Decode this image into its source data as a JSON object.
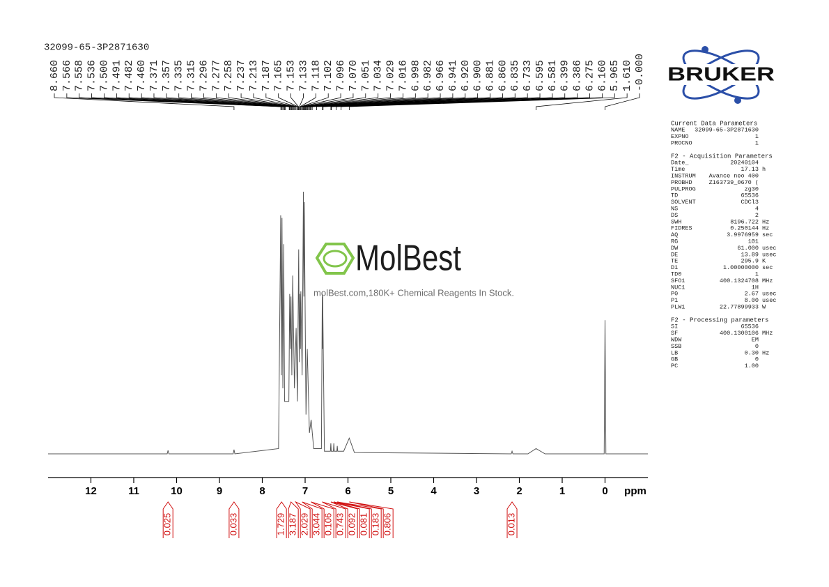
{
  "chart_data": {
    "type": "spectrum",
    "title": "32099-65-3P2871630",
    "x_label": "ppm",
    "xlim": [
      13,
      -1
    ],
    "xticks": [
      12,
      11,
      10,
      9,
      8,
      7,
      6,
      5,
      4,
      3,
      2,
      1,
      0
    ],
    "ylim": [
      0,
      100
    ],
    "color": "#555555",
    "x": [
      13,
      10.22,
      10.2,
      10.18,
      8.68,
      8.66,
      8.64,
      7.62,
      7.57,
      7.555,
      7.54,
      7.52,
      7.5,
      7.48,
      7.38,
      7.36,
      7.345,
      7.33,
      7.31,
      7.29,
      7.25,
      7.21,
      7.18,
      7.15,
      7.135,
      7.12,
      7.11,
      7.1,
      7.07,
      7.04,
      7.03,
      7.02,
      6.98,
      6.95,
      6.9,
      6.86,
      6.8,
      6.62,
      6.6,
      6.595,
      6.59,
      6.55,
      6.41,
      6.4,
      6.39,
      6.34,
      6.33,
      6.32,
      6.26,
      6.25,
      6.24,
      6.1,
      5.97,
      5.85,
      2.19,
      2.17,
      2.15,
      1.8,
      1.61,
      1.4,
      0.02,
      0,
      -0.02,
      -1
    ],
    "values": [
      0,
      0,
      1.3,
      0,
      0,
      1.6,
      0,
      2,
      91,
      30,
      90,
      25,
      80,
      20,
      20,
      61,
      40,
      60,
      30,
      68,
      25,
      48,
      20,
      78,
      35,
      61,
      40,
      62,
      30,
      100,
      60,
      96,
      15,
      40,
      8,
      13,
      2,
      2,
      61,
      40,
      60,
      1,
      1,
      4,
      1,
      1,
      4,
      1,
      1,
      3,
      1,
      1,
      6,
      0.5,
      0,
      1,
      0,
      0,
      2,
      0,
      0,
      51,
      0,
      0
    ],
    "peaks": [
      {
        "value": 8.66,
        "label": "8.660"
      },
      {
        "value": 7.566,
        "label": "7.566"
      },
      {
        "value": 7.558,
        "label": "7.558"
      },
      {
        "value": 7.536,
        "label": "7.536"
      },
      {
        "value": 7.5,
        "label": "7.500"
      },
      {
        "value": 7.491,
        "label": "7.491"
      },
      {
        "value": 7.482,
        "label": "7.482"
      },
      {
        "value": 7.46,
        "label": "7.460"
      },
      {
        "value": 7.371,
        "label": "7.371"
      },
      {
        "value": 7.357,
        "label": "7.357"
      },
      {
        "value": 7.335,
        "label": "7.335"
      },
      {
        "value": 7.315,
        "label": "7.315"
      },
      {
        "value": 7.296,
        "label": "7.296"
      },
      {
        "value": 7.277,
        "label": "7.277"
      },
      {
        "value": 7.258,
        "label": "7.258"
      },
      {
        "value": 7.237,
        "label": "7.237"
      },
      {
        "value": 7.213,
        "label": "7.213"
      },
      {
        "value": 7.187,
        "label": "7.187"
      },
      {
        "value": 7.165,
        "label": "7.165"
      },
      {
        "value": 7.153,
        "label": "7.153"
      },
      {
        "value": 7.133,
        "label": "7.133"
      },
      {
        "value": 7.118,
        "label": "7.118"
      },
      {
        "value": 7.102,
        "label": "7.102"
      },
      {
        "value": 7.096,
        "label": "7.096"
      },
      {
        "value": 7.07,
        "label": "7.070"
      },
      {
        "value": 7.051,
        "label": "7.051"
      },
      {
        "value": 7.034,
        "label": "7.034"
      },
      {
        "value": 7.029,
        "label": "7.029"
      },
      {
        "value": 7.016,
        "label": "7.016"
      },
      {
        "value": 6.998,
        "label": "6.998"
      },
      {
        "value": 6.982,
        "label": "6.982"
      },
      {
        "value": 6.966,
        "label": "6.966"
      },
      {
        "value": 6.941,
        "label": "6.941"
      },
      {
        "value": 6.92,
        "label": "6.920"
      },
      {
        "value": 6.9,
        "label": "6.900"
      },
      {
        "value": 6.881,
        "label": "6.881"
      },
      {
        "value": 6.86,
        "label": "6.860"
      },
      {
        "value": 6.835,
        "label": "6.835"
      },
      {
        "value": 6.733,
        "label": "6.733"
      },
      {
        "value": 6.595,
        "label": "6.595"
      },
      {
        "value": 6.581,
        "label": "6.581"
      },
      {
        "value": 6.399,
        "label": "6.399"
      },
      {
        "value": 6.386,
        "label": "6.386"
      },
      {
        "value": 6.275,
        "label": "6.275"
      },
      {
        "value": 6.16,
        "label": "6.160"
      },
      {
        "value": 5.965,
        "label": "5.965"
      },
      {
        "value": 1.61,
        "label": "1.610"
      },
      {
        "value": 0,
        "label": "-0.000"
      }
    ],
    "integrals": {
      "x": [
        10.2,
        8.66,
        7.55,
        7.33,
        7.22,
        7.07,
        6.86,
        6.6,
        6.4,
        6.33,
        6.25,
        5.97,
        2.17
      ],
      "values": [
        0.025,
        0.033,
        1.729,
        3.187,
        2.029,
        3.044,
        0.106,
        0.743,
        0.092,
        0.081,
        0.183,
        0.806,
        0.013
      ],
      "color": "#d01010"
    }
  },
  "watermark": {
    "brand": "MolBest",
    "text": "molBest.com,180K+ Chemical Reagents In Stock."
  },
  "logo": "BRUKER",
  "params": [
    {
      "title": "Current Data Parameters",
      "rows": [
        {
          "name": "NAME",
          "value": "32099-65-3P2871630"
        },
        {
          "name": "EXPNO",
          "value": "1"
        },
        {
          "name": "PROCNO",
          "value": "1"
        }
      ]
    },
    {
      "title": "F2 - Acquisition Parameters",
      "rows": [
        {
          "name": "Date_",
          "value": "20240104"
        },
        {
          "name": "Time",
          "value": "17.13",
          "unit": "h"
        },
        {
          "name": "INSTRUM",
          "value": "Avance neo 400"
        },
        {
          "name": "PROBHD",
          "value": "Z163739_0670 ("
        },
        {
          "name": "PULPROG",
          "value": "zg30"
        },
        {
          "name": "TD",
          "value": "65536"
        },
        {
          "name": "SOLVENT",
          "value": "CDCl3"
        },
        {
          "name": "NS",
          "value": "4"
        },
        {
          "name": "DS",
          "value": "2"
        },
        {
          "name": "SWH",
          "value": "8196.722",
          "unit": "Hz"
        },
        {
          "name": "FIDRES",
          "value": "0.250144",
          "unit": "Hz"
        },
        {
          "name": "AQ",
          "value": "3.9976959",
          "unit": "sec"
        },
        {
          "name": "RG",
          "value": "101"
        },
        {
          "name": "DW",
          "value": "61.000",
          "unit": "usec"
        },
        {
          "name": "DE",
          "value": "13.89",
          "unit": "usec"
        },
        {
          "name": "TE",
          "value": "295.9",
          "unit": "K"
        },
        {
          "name": "D1",
          "value": "1.00000000",
          "unit": "sec"
        },
        {
          "name": "TD0",
          "value": "1"
        },
        {
          "name": "SFO1",
          "value": "400.1324708",
          "unit": "MHz"
        },
        {
          "name": "NUC1",
          "value": "1H"
        },
        {
          "name": "P0",
          "value": "2.67",
          "unit": "usec"
        },
        {
          "name": "P1",
          "value": "8.00",
          "unit": "usec"
        },
        {
          "name": "PLW1",
          "value": "22.77899933",
          "unit": "W"
        }
      ]
    },
    {
      "title": "F2 - Processing parameters",
      "rows": [
        {
          "name": "SI",
          "value": "65536"
        },
        {
          "name": "SF",
          "value": "400.1300106",
          "unit": "MHz"
        },
        {
          "name": "WDW",
          "value": "EM"
        },
        {
          "name": "SSB",
          "value": "0"
        },
        {
          "name": "LB",
          "value": "0.30",
          "unit": "Hz"
        },
        {
          "name": "GB",
          "value": "0"
        },
        {
          "name": "PC",
          "value": "1.00"
        }
      ]
    }
  ]
}
